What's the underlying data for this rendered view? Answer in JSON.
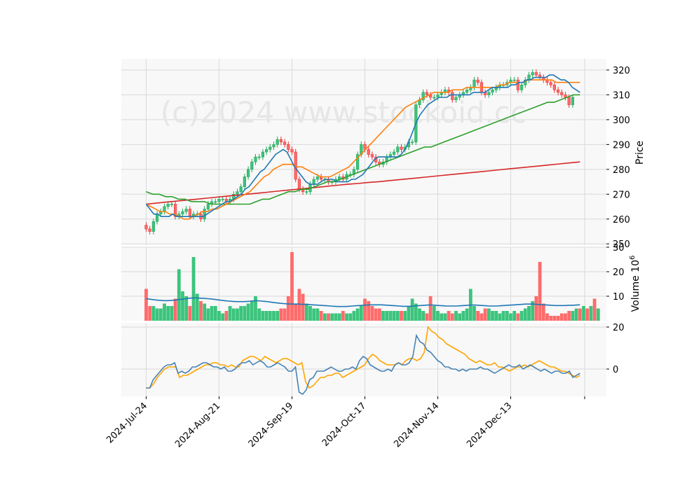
{
  "watermark": "(c)2024 www.stockoid.cc",
  "chart_data": {
    "type": "candlestick",
    "colors": {
      "up": "#26a65b",
      "up_fill": "#3cc47c",
      "down": "#e8343a",
      "down_fill": "#ff6b6b",
      "ma_short": "#1f77b4",
      "ma_mid": "#ff7f0e",
      "ma_long": "#2ca02c",
      "ma_vlong": "#d62728",
      "vol_ma": "#1f77b4",
      "osc_a": "#4682b4",
      "osc_b": "#ffa500",
      "panel_bg": "#f8f8f8",
      "grid": "#d9d9d9"
    },
    "x_ticks": [
      {
        "index": 0,
        "label": "2024-Jul-24"
      },
      {
        "index": 20,
        "label": "2024-Aug-21"
      },
      {
        "index": 40,
        "label": "2024-Sep-19"
      },
      {
        "index": 60,
        "label": "2024-Oct-17"
      },
      {
        "index": 80,
        "label": "2024-Nov-14"
      },
      {
        "index": 100,
        "label": "2024-Dec-13"
      }
    ],
    "price": {
      "ylabel": "Price",
      "ylim": [
        249.5,
        324.5
      ],
      "ticks": [
        250,
        260,
        270,
        280,
        290,
        300,
        310,
        320
      ],
      "closes": [
        256,
        255,
        259,
        262,
        263,
        265,
        266,
        266,
        261,
        262,
        263,
        264,
        261,
        262,
        262,
        260,
        264,
        266,
        267,
        267,
        268,
        268,
        267,
        268,
        270,
        271,
        273,
        277,
        280,
        283,
        285,
        285,
        287,
        288,
        289,
        290,
        292,
        291,
        290,
        288,
        287,
        276,
        272,
        271,
        271,
        274,
        276,
        277,
        276,
        276,
        275,
        275,
        276,
        277,
        276,
        278,
        278,
        280,
        286,
        290,
        288,
        286,
        285,
        283,
        282,
        283,
        285,
        286,
        287,
        289,
        288,
        289,
        291,
        291,
        306,
        308,
        311,
        310,
        309,
        309,
        310,
        311,
        312,
        311,
        308,
        309,
        310,
        311,
        312,
        313,
        316,
        315,
        311,
        310,
        311,
        312,
        313,
        314,
        314,
        315,
        316,
        316,
        312,
        314,
        316,
        318,
        319,
        318,
        317,
        316,
        315,
        314,
        312,
        311,
        310,
        309,
        306,
        309
      ],
      "ma_short": [
        266,
        264,
        262,
        262,
        261,
        261,
        261,
        262,
        261,
        261,
        261,
        261,
        261,
        261,
        261,
        261,
        262,
        263,
        264,
        265,
        266,
        267,
        267,
        268,
        269,
        270,
        272,
        273,
        275,
        277,
        279,
        280,
        282,
        284,
        286,
        287,
        288,
        287,
        284,
        281,
        279,
        277,
        275,
        274,
        274,
        274,
        275,
        276,
        276,
        276,
        275,
        275,
        275,
        275,
        276,
        276,
        277,
        278,
        280,
        282,
        284,
        285,
        285,
        285,
        285,
        285,
        285,
        286,
        288,
        291,
        295,
        299,
        302,
        304,
        306,
        307,
        308,
        309,
        309,
        309,
        310,
        310,
        310,
        310,
        310,
        310,
        311,
        311,
        311,
        311,
        312,
        313,
        313,
        313,
        313,
        313,
        314,
        314,
        315,
        315,
        316,
        316,
        317,
        317,
        317,
        317,
        318,
        318,
        317,
        316,
        316,
        315,
        313,
        312,
        311
      ],
      "ma_mid": [
        266,
        265,
        264,
        263,
        263,
        262,
        262,
        261,
        260,
        260,
        261,
        262,
        263,
        263,
        264,
        264,
        265,
        266,
        267,
        268,
        269,
        270,
        271,
        273,
        275,
        277,
        278,
        280,
        281,
        282,
        282,
        282,
        281,
        281,
        280,
        279,
        278,
        277,
        277,
        277,
        278,
        279,
        280,
        281,
        283,
        285,
        287,
        289,
        291,
        293,
        295,
        297,
        299,
        301,
        303,
        305,
        306,
        307,
        308,
        309,
        310,
        311,
        311,
        311,
        311,
        312,
        312,
        312,
        313,
        313,
        313,
        313,
        313,
        313,
        313,
        314,
        314,
        315,
        315,
        315,
        315,
        316,
        316,
        316,
        316,
        316,
        316,
        315,
        315,
        315,
        315,
        315,
        315
      ],
      "ma_long": [
        271,
        270,
        270,
        269,
        269,
        268,
        268,
        267,
        267,
        267,
        266,
        266,
        266,
        266,
        266,
        266,
        266,
        267,
        268,
        268,
        269,
        270,
        271,
        271,
        272,
        272,
        273,
        274,
        275,
        275,
        276,
        277,
        278,
        279,
        280,
        281,
        282,
        283,
        284,
        285,
        286,
        287,
        288,
        289,
        289,
        290,
        291,
        292,
        293,
        294,
        295,
        296,
        297,
        298,
        299,
        300,
        301,
        302,
        303,
        304,
        305,
        306,
        307,
        307,
        308,
        309,
        310,
        310
      ],
      "ma_vlong": [
        266,
        266.4,
        266.8,
        267.2,
        267.6,
        268,
        268.4,
        268.8,
        269.2,
        269.6,
        270,
        270.4,
        270.8,
        271.2,
        271.6,
        272,
        272.4,
        272.8,
        273.2,
        273.6,
        274,
        274.3,
        274.7,
        275,
        275.4,
        275.8,
        276.2,
        276.6,
        277,
        277.4,
        277.8,
        278.2,
        278.6,
        279,
        279.4,
        279.8,
        280.2,
        280.6,
        281,
        281.4,
        281.8,
        282.2,
        282.6,
        283
      ]
    },
    "volume": {
      "ylabel": "Volume  10",
      "ylabel_exp": "6",
      "ylim": [
        0,
        30
      ],
      "ticks": [
        10,
        20,
        30
      ],
      "values": [
        13,
        6,
        6,
        5,
        5,
        7,
        6,
        6,
        9,
        21,
        12,
        10,
        6,
        26,
        11,
        8,
        7,
        5,
        6,
        6,
        4,
        3,
        4,
        6,
        5,
        5,
        6,
        6,
        7,
        8,
        10,
        5,
        4,
        4,
        4,
        4,
        4,
        5,
        5,
        10,
        28,
        7,
        13,
        11,
        7,
        6,
        5,
        5,
        4,
        3,
        3,
        3,
        3,
        3,
        4,
        3,
        3,
        4,
        5,
        6,
        9,
        8,
        6,
        5,
        5,
        4,
        4,
        4,
        4,
        4,
        4,
        4,
        6,
        9,
        7,
        5,
        4,
        3,
        10,
        6,
        4,
        3,
        3,
        4,
        3,
        4,
        3,
        4,
        5,
        13,
        6,
        4,
        3,
        5,
        5,
        4,
        4,
        3,
        4,
        4,
        3,
        4,
        3,
        4,
        5,
        6,
        8,
        10,
        24,
        7,
        3,
        2,
        2,
        2,
        3,
        3,
        4,
        4,
        5,
        5,
        6,
        5,
        6,
        9,
        5
      ],
      "ma": [
        9,
        8.8,
        8.6,
        8.4,
        8.3,
        8.2,
        8.2,
        8.3,
        8.4,
        8.6,
        8.8,
        9,
        9.2,
        9.3,
        9.3,
        9.2,
        9.1,
        9,
        8.9,
        8.7,
        8.5,
        8.3,
        8.1,
        8,
        7.9,
        7.8,
        7.8,
        7.8,
        7.9,
        8,
        8.1,
        8.1,
        8,
        7.9,
        7.7,
        7.5,
        7.3,
        7.1,
        7,
        6.9,
        6.8,
        6.8,
        6.8,
        6.7,
        6.7,
        6.6,
        6.5,
        6.4,
        6.3,
        6.2,
        6.1,
        6,
        5.9,
        5.8,
        5.8,
        5.8,
        5.9,
        6,
        6.1,
        6.2,
        6.3,
        6.4,
        6.5,
        6.5,
        6.5,
        6.5,
        6.4,
        6.3,
        6.2,
        6.1,
        6,
        5.9,
        5.9,
        5.9,
        6,
        6.1,
        6.2,
        6.3,
        6.4,
        6.4,
        6.3,
        6.2,
        6.1,
        6,
        6,
        6,
        6,
        6.1,
        6.2,
        6.3,
        6.4,
        6.4,
        6.3,
        6.2,
        6.1,
        6,
        6,
        6,
        6.1,
        6.2,
        6.3,
        6.4,
        6.5,
        6.6,
        6.7,
        6.8,
        6.8,
        6.8,
        6.7,
        6.6,
        6.5,
        6.4,
        6.3,
        6.2,
        6.2,
        6.2,
        6.2,
        6.3,
        6.3,
        6.4,
        6.5
      ]
    },
    "oscillator": {
      "ylim": [
        -13,
        22
      ],
      "ticks": [
        0,
        20
      ],
      "line_a": [
        -9,
        -9,
        -5,
        -3,
        -1,
        1,
        2,
        2,
        3,
        -2,
        -1,
        -2,
        -1,
        1,
        1,
        2,
        3,
        3,
        2,
        1,
        1,
        0,
        1,
        -1,
        -1,
        0,
        2,
        3,
        3,
        4,
        2,
        3,
        4,
        3,
        1,
        1,
        2,
        3,
        2,
        1,
        -1,
        -1,
        1,
        -11,
        -12,
        -10,
        -5,
        -4,
        -1,
        -1,
        -1,
        0,
        1,
        0,
        -1,
        -1,
        0,
        0,
        1,
        0,
        4,
        6,
        5,
        2,
        1,
        0,
        -1,
        -1,
        0,
        -1,
        2,
        3,
        2,
        2,
        3,
        6,
        16,
        13,
        12,
        9,
        8,
        6,
        4,
        3,
        1,
        1,
        0,
        0,
        -1,
        0,
        -1,
        0,
        0,
        0,
        1,
        0,
        0,
        -1,
        -2,
        -1,
        0,
        1,
        2,
        1,
        1,
        2,
        0,
        1,
        2,
        1,
        0,
        -1,
        0,
        -1,
        -2,
        -1,
        -1,
        -2,
        -2,
        -1,
        -4,
        -3,
        -2
      ],
      "line_b": [
        -9,
        -9,
        -7,
        -4,
        -2,
        0,
        1,
        1,
        1,
        -4,
        -3,
        -3,
        -2,
        -1,
        0,
        1,
        2,
        2,
        3,
        3,
        2,
        2,
        1,
        2,
        1,
        1,
        4,
        5,
        6,
        6,
        5,
        4,
        6,
        5,
        4,
        3,
        4,
        5,
        5,
        4,
        3,
        2,
        3,
        -6,
        -9,
        -8,
        -6,
        -4,
        -4,
        -3,
        -3,
        -2,
        -2,
        -4,
        -3,
        -2,
        -1,
        0,
        1,
        2,
        5,
        7,
        6,
        4,
        3,
        2,
        2,
        2,
        3,
        2,
        4,
        5,
        5,
        4,
        5,
        8,
        20,
        18,
        17,
        15,
        14,
        12,
        11,
        10,
        9,
        8,
        7,
        5,
        4,
        3,
        4,
        3,
        2,
        2,
        3,
        1,
        1,
        0,
        -1,
        0,
        1,
        1,
        2,
        1,
        2,
        3,
        4,
        3,
        2,
        1,
        1,
        0,
        -1,
        -1,
        -2,
        -3,
        -4,
        -3
      ]
    }
  }
}
